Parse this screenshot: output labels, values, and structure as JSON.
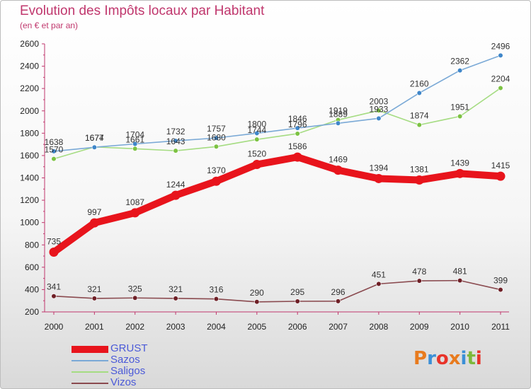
{
  "header": {
    "title": "Evolution des Impôts locaux par Habitant",
    "subtitle": "(en € et par an)"
  },
  "logo": {
    "text": "Proxiti",
    "letters": [
      "P",
      "r",
      "o",
      "x",
      "i",
      "t",
      "i"
    ],
    "colors": [
      "#e87b1e",
      "#3b8fd6",
      "#e8332a",
      "#e87b1e",
      "#3b8fd6",
      "#7db83a",
      "#e8332a"
    ]
  },
  "chart_data": {
    "type": "line",
    "title": "Evolution des Impôts locaux par Habitant",
    "subtitle": "(en € et par an)",
    "xlabel": "",
    "ylabel": "",
    "x": [
      "2000",
      "2001",
      "2002",
      "2003",
      "2004",
      "2005",
      "2006",
      "2007",
      "2008",
      "2009",
      "2010",
      "2011"
    ],
    "ylim": [
      200,
      2600
    ],
    "yticks": [
      200,
      400,
      600,
      800,
      1000,
      1200,
      1400,
      1600,
      1800,
      2000,
      2200,
      2400,
      2600
    ],
    "grid": false,
    "legend_position": "bottom-left",
    "series": [
      {
        "name": "GRUST",
        "color": "#e8141c",
        "values": [
          735,
          997,
          1087,
          1244,
          1370,
          1520,
          1586,
          1469,
          1394,
          1381,
          1439,
          1415
        ]
      },
      {
        "name": "Sazos",
        "color": "#7aa9d6",
        "marker": "#3f86c9",
        "values": [
          1638,
          1674,
          1704,
          1732,
          1757,
          1800,
          1846,
          1889,
          1933,
          2160,
          2362,
          2496
        ]
      },
      {
        "name": "Saligos",
        "color": "#a5dc82",
        "marker": "#7cc242",
        "values": [
          1570,
          1677,
          1661,
          1643,
          1680,
          1744,
          1796,
          1919,
          2003,
          1874,
          1951,
          2204
        ]
      },
      {
        "name": "Vizos",
        "color": "#8a4a4f",
        "marker": "#6e1f26",
        "values": [
          341,
          321,
          325,
          321,
          316,
          290,
          295,
          296,
          451,
          478,
          481,
          399
        ]
      }
    ]
  }
}
